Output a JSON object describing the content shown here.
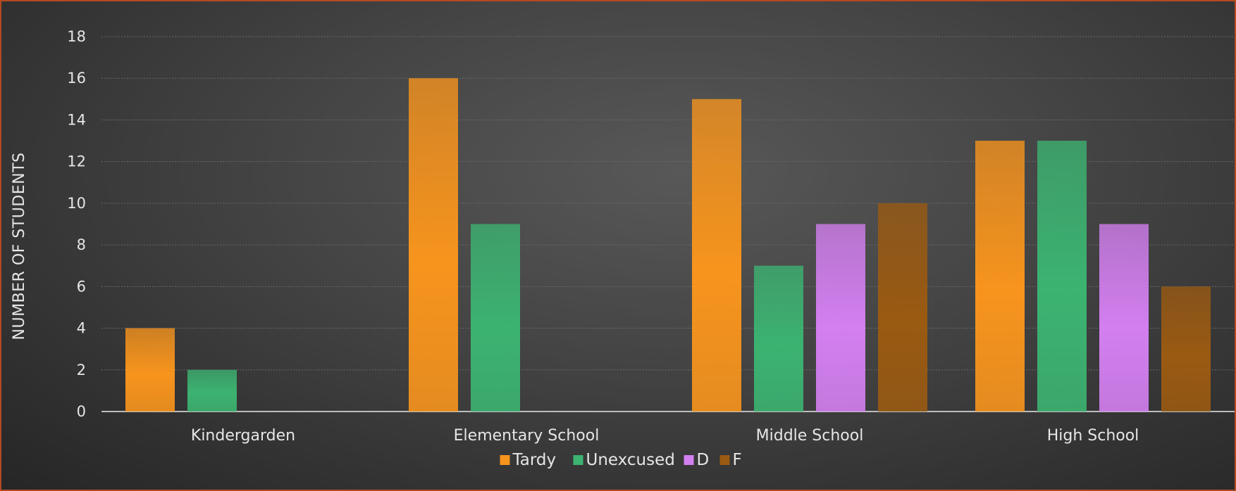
{
  "chart_data": {
    "type": "bar",
    "title": "",
    "xlabel": "",
    "ylabel": "NUMBER OF STUDENTS",
    "ylim": [
      0,
      18
    ],
    "yticks": [
      0,
      2,
      4,
      6,
      8,
      10,
      12,
      14,
      16,
      18
    ],
    "grid": true,
    "legend_position": "bottom",
    "categories": [
      "Kindergarden",
      "Elementary School",
      "Middle School",
      "High School"
    ],
    "series": [
      {
        "name": "Tardy",
        "color": "#f7941d",
        "values": [
          4,
          16,
          15,
          13
        ]
      },
      {
        "name": "Unexcused",
        "color": "#3cb371",
        "values": [
          2,
          9,
          7,
          13
        ]
      },
      {
        "name": "D",
        "color": "#d37ff0",
        "values": [
          0,
          0,
          9,
          9
        ]
      },
      {
        "name": "F",
        "color": "#9a5a12",
        "values": [
          0,
          0,
          10,
          6
        ]
      }
    ]
  }
}
